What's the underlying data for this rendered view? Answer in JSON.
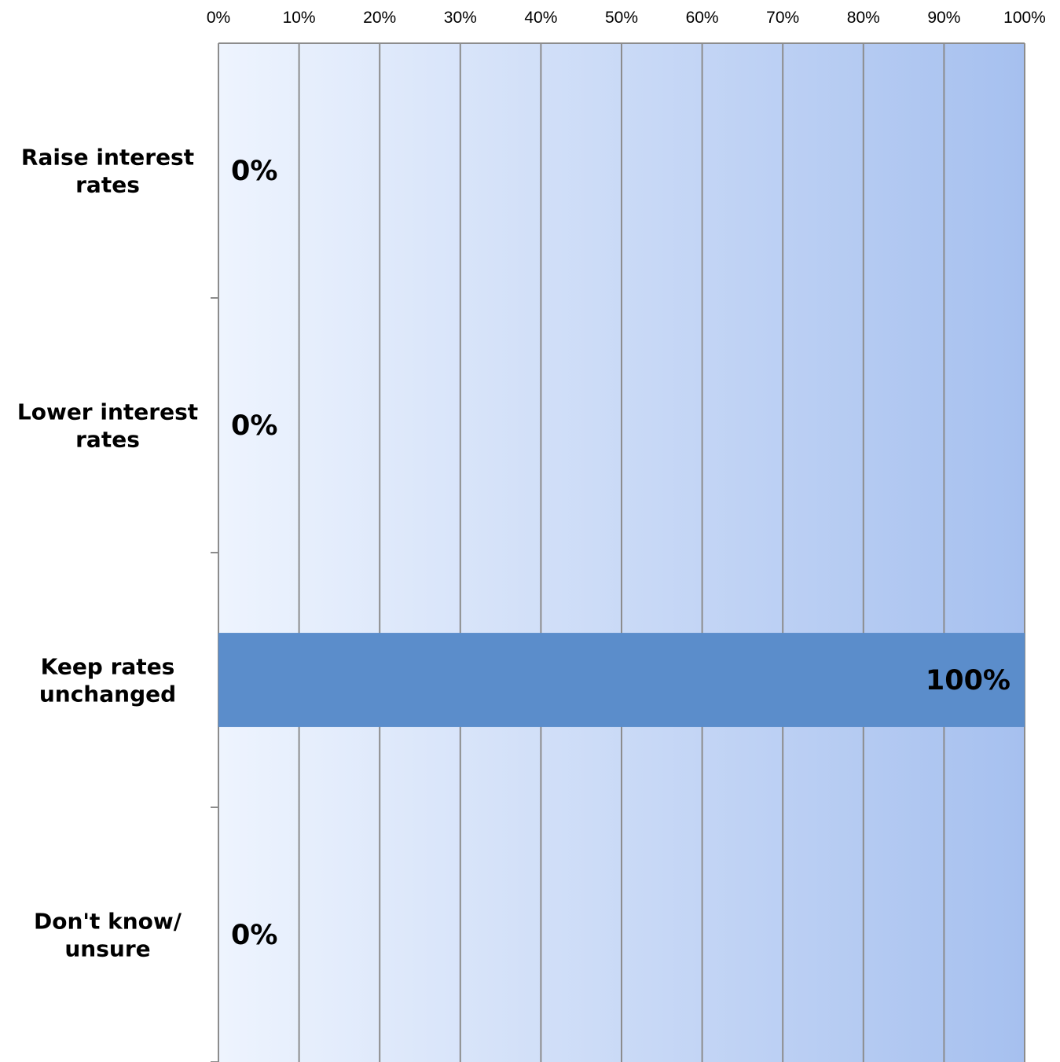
{
  "chart_data": {
    "type": "bar",
    "orientation": "horizontal",
    "categories": [
      [
        "Raise interest",
        "rates"
      ],
      [
        "Lower interest",
        "rates"
      ],
      [
        "Keep rates",
        "unchanged"
      ],
      [
        "Don't know/",
        "unsure"
      ]
    ],
    "values": [
      0,
      0,
      100,
      0
    ],
    "value_labels": [
      "0%",
      "0%",
      "100%",
      "0%"
    ],
    "xlim": [
      0,
      100
    ],
    "x_ticks": [
      0,
      10,
      20,
      30,
      40,
      50,
      60,
      70,
      80,
      90,
      100
    ],
    "x_tick_labels": [
      "0%",
      "10%",
      "20%",
      "30%",
      "40%",
      "50%",
      "60%",
      "70%",
      "80%",
      "90%",
      "100%"
    ],
    "x_axis_position": "top",
    "grid": true,
    "legend": false,
    "title": "",
    "xlabel": "",
    "ylabel": "",
    "colors": {
      "bar": "#5b8dcb",
      "background_start": "#eef4fe",
      "background_end": "#a6c0ef",
      "gridline": "#8c8c8c"
    }
  }
}
